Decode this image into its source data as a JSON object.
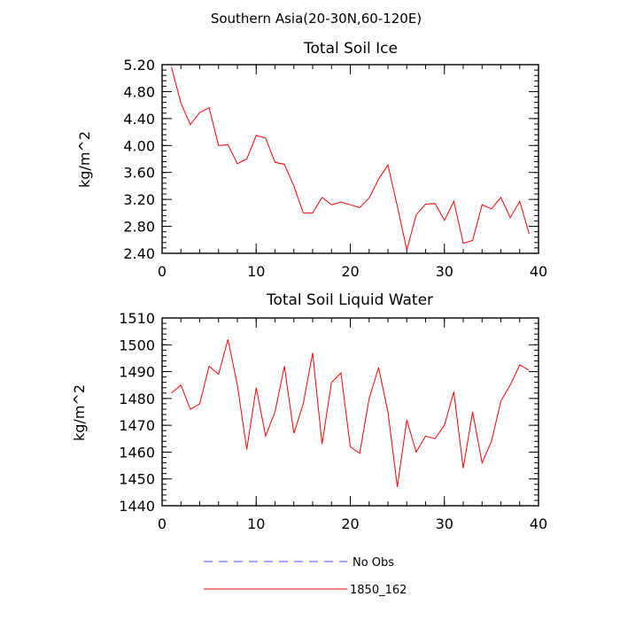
{
  "figure_title": "Southern Asia(20-30N,60-120E)",
  "colors": {
    "obs": "#4b4bff",
    "model": "#ff0000"
  },
  "legend": [
    {
      "label": "No Obs",
      "style": "dashed",
      "color_key": "obs"
    },
    {
      "label": "1850_162",
      "style": "solid",
      "color_key": "model"
    }
  ],
  "chart_data": [
    {
      "type": "line",
      "title": "Total Soil Ice",
      "xlabel": "",
      "ylabel": "kg/m^2",
      "xlim": [
        0,
        40
      ],
      "ylim": [
        2.4,
        5.2
      ],
      "xticks": [
        0,
        10,
        20,
        30,
        40
      ],
      "xtick_labels": [
        "0",
        "10",
        "20",
        "30",
        "40"
      ],
      "yticks": [
        2.4,
        2.8,
        3.2,
        3.6,
        4.0,
        4.4,
        4.8,
        5.2
      ],
      "ytick_labels": [
        "2.40",
        "2.80",
        "3.20",
        "3.60",
        "4.00",
        "4.40",
        "4.80",
        "5.20"
      ],
      "yminor_step": 0.08,
      "xminor_step": 2,
      "grid": false,
      "series": [
        {
          "name": "1850_162",
          "color_key": "model",
          "x": [
            1,
            2,
            3,
            4,
            5,
            6,
            7,
            8,
            9,
            10,
            11,
            12,
            13,
            14,
            15,
            16,
            17,
            18,
            19,
            20,
            21,
            22,
            23,
            24,
            25,
            26,
            27,
            28,
            29,
            30,
            31,
            32,
            33,
            34,
            35,
            36,
            37,
            38,
            39
          ],
          "y": [
            5.16,
            4.63,
            4.31,
            4.49,
            4.56,
            4.0,
            4.01,
            3.73,
            3.8,
            4.15,
            4.11,
            3.75,
            3.72,
            3.4,
            3.0,
            3.0,
            3.23,
            3.12,
            3.16,
            3.12,
            3.08,
            3.22,
            3.5,
            3.71,
            3.1,
            2.45,
            2.97,
            3.13,
            3.14,
            2.89,
            3.17,
            2.55,
            2.59,
            3.12,
            3.06,
            3.23,
            2.93,
            3.17,
            2.69
          ]
        }
      ]
    },
    {
      "type": "line",
      "title": "Total Soil Liquid Water",
      "xlabel": "",
      "ylabel": "kg/m^2",
      "xlim": [
        0,
        40
      ],
      "ylim": [
        1440,
        1510
      ],
      "xticks": [
        0,
        10,
        20,
        30,
        40
      ],
      "xtick_labels": [
        "0",
        "10",
        "20",
        "30",
        "40"
      ],
      "yticks": [
        1440,
        1450,
        1460,
        1470,
        1480,
        1490,
        1500,
        1510
      ],
      "ytick_labels": [
        "1440",
        "1450",
        "1460",
        "1470",
        "1480",
        "1490",
        "1500",
        "1510"
      ],
      "yminor_step": 2,
      "xminor_step": 2,
      "grid": false,
      "series": [
        {
          "name": "1850_162",
          "color_key": "model",
          "x": [
            1,
            2,
            3,
            4,
            5,
            6,
            7,
            8,
            9,
            10,
            11,
            12,
            13,
            14,
            15,
            16,
            17,
            18,
            19,
            20,
            21,
            22,
            23,
            24,
            25,
            26,
            27,
            28,
            29,
            30,
            31,
            32,
            33,
            34,
            35,
            36,
            37,
            38,
            39
          ],
          "y": [
            1482,
            1485,
            1476,
            1478,
            1492,
            1489,
            1502,
            1485,
            1461,
            1484,
            1466,
            1475,
            1492,
            1467,
            1478,
            1497,
            1463,
            1486,
            1489.5,
            1462,
            1459.5,
            1480,
            1491.5,
            1475,
            1447,
            1472,
            1460,
            1466,
            1465,
            1470,
            1482.5,
            1454,
            1475,
            1456,
            1464,
            1479,
            1485,
            1492.5,
            1490.5
          ]
        }
      ]
    }
  ]
}
